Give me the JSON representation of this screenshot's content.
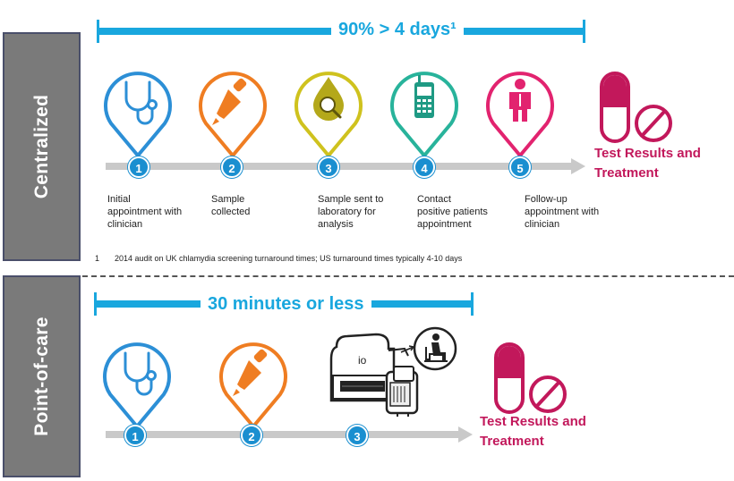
{
  "sections": {
    "centralized": {
      "label": "Centralized",
      "time_label": "90% > 4 days¹",
      "steps": [
        {
          "num": "1",
          "icon": "stethoscope-icon",
          "color": "#2c8fd6",
          "text": "Initial\nappointment with\nclinician"
        },
        {
          "num": "2",
          "icon": "dropper-icon",
          "color": "#ef7d22",
          "text": "Sample\ncollected"
        },
        {
          "num": "3",
          "icon": "drop-magnifier-icon",
          "color": "#cfc21e",
          "text": "Sample sent to\nlaboratory for\nanalysis"
        },
        {
          "num": "4",
          "icon": "mobile-phone-icon",
          "color": "#28b39b",
          "text": "Contact\npositive patients\nappointment"
        },
        {
          "num": "5",
          "icon": "person-icon",
          "color": "#e2236f",
          "text": "Follow-up\nappointment with\nclinician"
        }
      ],
      "result_label": "Test Results and\nTreatment",
      "footnote_number": "1",
      "footnote": "2014 audit on UK chlamydia screening turnaround times; US turnaround times typically 4-10 days"
    },
    "point_of_care": {
      "label": "Point-of-care",
      "time_label": "30 minutes or less",
      "steps": [
        {
          "num": "1",
          "icon": "stethoscope-icon",
          "color": "#2c8fd6"
        },
        {
          "num": "2",
          "icon": "dropper-icon",
          "color": "#ef7d22"
        },
        {
          "num": "3",
          "icon": "analyzer-device-icon",
          "device_label": "io"
        }
      ],
      "result_label": "Test Results and\nTreatment"
    }
  },
  "colors": {
    "accent_blue": "#19a7de",
    "number_blue": "#1a8fd0",
    "result_magenta": "#c2185b",
    "track_gray": "#c9c9c9",
    "side_label_gray": "#7a7a7a"
  }
}
